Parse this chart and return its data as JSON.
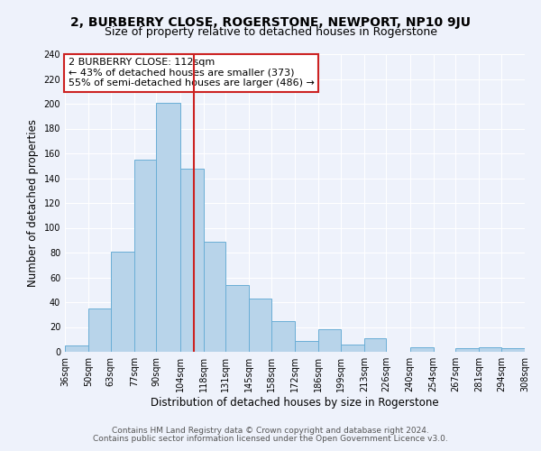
{
  "title": "2, BURBERRY CLOSE, ROGERSTONE, NEWPORT, NP10 9JU",
  "subtitle": "Size of property relative to detached houses in Rogerstone",
  "xlabel": "Distribution of detached houses by size in Rogerstone",
  "ylabel": "Number of detached properties",
  "footnote1": "Contains HM Land Registry data © Crown copyright and database right 2024.",
  "footnote2": "Contains public sector information licensed under the Open Government Licence v3.0.",
  "bins": [
    36,
    50,
    63,
    77,
    90,
    104,
    118,
    131,
    145,
    158,
    172,
    186,
    199,
    213,
    226,
    240,
    254,
    267,
    281,
    294,
    308
  ],
  "counts": [
    5,
    35,
    81,
    155,
    201,
    148,
    89,
    54,
    43,
    25,
    9,
    18,
    6,
    11,
    0,
    4,
    0,
    3,
    4,
    3
  ],
  "bar_color": "#b8d4ea",
  "bar_edge_color": "#6aaed6",
  "vline_x": 112,
  "vline_color": "#cc2222",
  "annotation_title": "2 BURBERRY CLOSE: 112sqm",
  "annotation_left": "← 43% of detached houses are smaller (373)",
  "annotation_right": "55% of semi-detached houses are larger (486) →",
  "annotation_box_color": "#ffffff",
  "annotation_box_edge_color": "#cc2222",
  "ylim": [
    0,
    240
  ],
  "yticks": [
    0,
    20,
    40,
    60,
    80,
    100,
    120,
    140,
    160,
    180,
    200,
    220,
    240
  ],
  "tick_labels": [
    "36sqm",
    "50sqm",
    "63sqm",
    "77sqm",
    "90sqm",
    "104sqm",
    "118sqm",
    "131sqm",
    "145sqm",
    "158sqm",
    "172sqm",
    "186sqm",
    "199sqm",
    "213sqm",
    "226sqm",
    "240sqm",
    "254sqm",
    "267sqm",
    "281sqm",
    "294sqm",
    "308sqm"
  ],
  "bg_color": "#eef2fb",
  "grid_color": "#ffffff",
  "title_fontsize": 10,
  "subtitle_fontsize": 9,
  "axis_label_fontsize": 8.5,
  "tick_fontsize": 7,
  "annotation_fontsize": 8,
  "footnote_fontsize": 6.5
}
